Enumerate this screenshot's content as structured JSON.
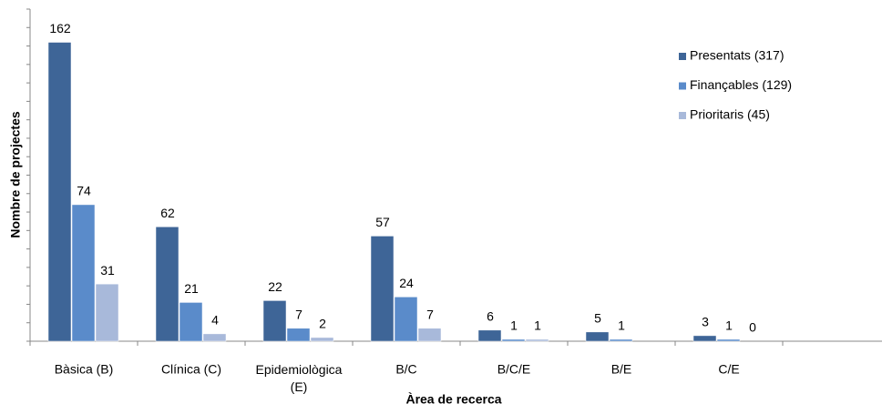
{
  "chart_data": {
    "type": "bar",
    "x_label": "Àrea de recerca",
    "y_label": "Nombre de projectes",
    "categories": [
      "Bàsica (B)",
      "Clínica (C)",
      "Epidemiològica (E)",
      "B/C",
      "B/C/E",
      "B/E",
      "C/E",
      null
    ],
    "series": [
      {
        "name": "Presentats (317)",
        "color": "#3e6597",
        "values": [
          162,
          62,
          22,
          57,
          6,
          5,
          3,
          null
        ]
      },
      {
        "name": "Finançables (129)",
        "color": "#5a8bca",
        "values": [
          74,
          21,
          7,
          24,
          1,
          1,
          1,
          null
        ]
      },
      {
        "name": "Prioritaris (45)",
        "color": "#a8b9da",
        "values": [
          31,
          4,
          2,
          7,
          1,
          null,
          0,
          null
        ]
      }
    ],
    "ylim": [
      0,
      180
    ],
    "yticks": [
      0,
      10,
      20,
      30,
      40,
      50,
      60,
      70,
      80,
      90,
      100,
      110,
      120,
      130,
      140,
      150,
      160,
      170,
      180
    ],
    "legend": "upper right"
  }
}
